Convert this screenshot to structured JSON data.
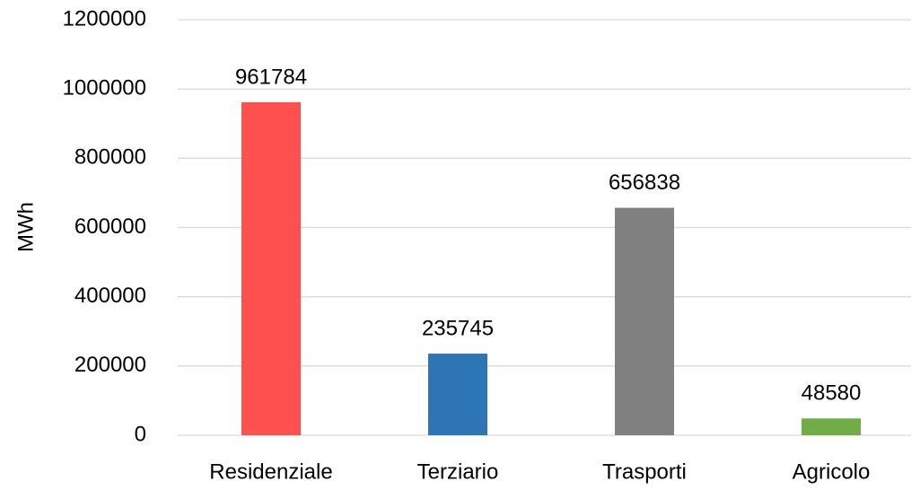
{
  "chart_data": {
    "type": "bar",
    "y_label": "MWh",
    "categories": [
      "Residenziale",
      "Terziario",
      "Trasporti",
      "Agricolo"
    ],
    "values": [
      961784,
      235745,
      656838,
      48580
    ],
    "colors": [
      "#ff5050",
      "#2e75b6",
      "#808080",
      "#70ad47"
    ],
    "ylim": [
      0,
      1200000
    ],
    "yticks": [
      0,
      200000,
      400000,
      600000,
      800000,
      1000000,
      1200000
    ],
    "grid": true
  }
}
